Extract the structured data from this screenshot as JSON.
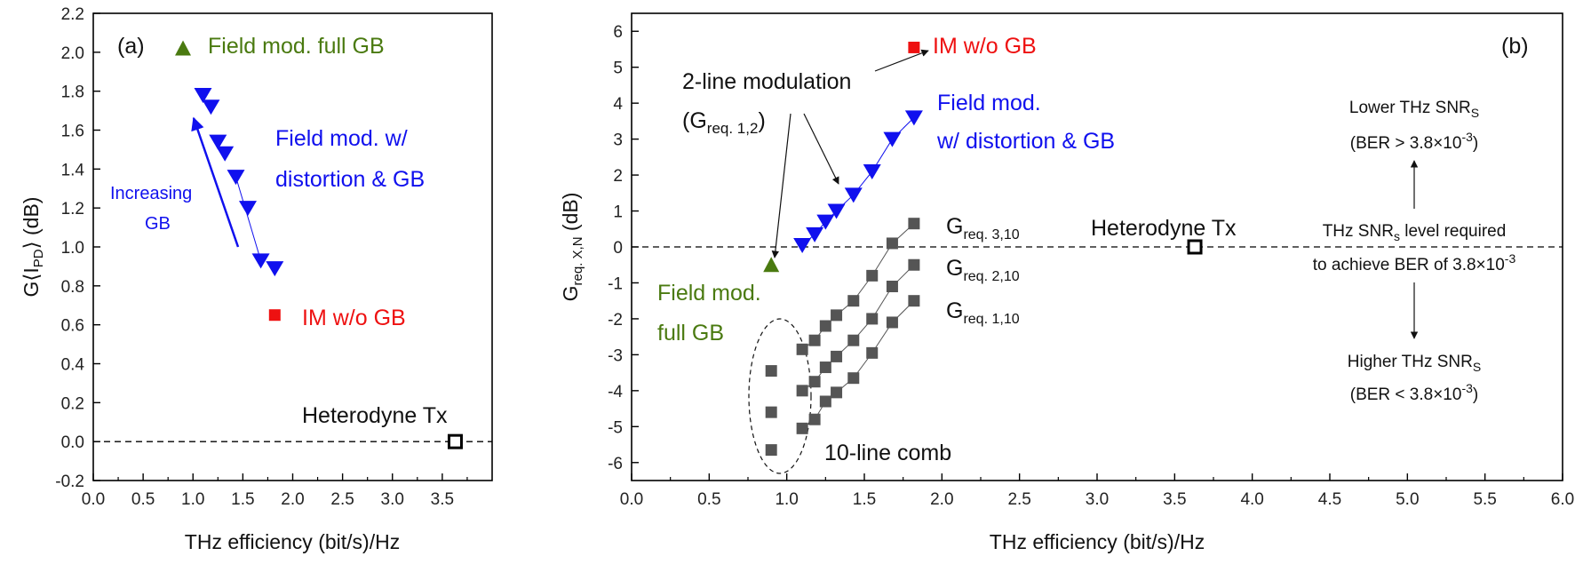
{
  "chart_data": [
    {
      "panel": "(a)",
      "type": "scatter",
      "xlabel": "THz efficiency (bit/s)/Hz",
      "ylabel_main": "G⟨I",
      "ylabel_sub": "PD",
      "ylabel_tail": "⟩ (dB)",
      "xlim": [
        0.0,
        4.0
      ],
      "ylim": [
        -0.2,
        2.2
      ],
      "xticks": [
        "0.0",
        "0.5",
        "1.0",
        "1.5",
        "2.0",
        "2.5",
        "3.0",
        "3.5"
      ],
      "yticks": [
        "-0.2",
        "0.0",
        "0.2",
        "0.4",
        "0.6",
        "0.8",
        "1.0",
        "1.2",
        "1.4",
        "1.6",
        "1.8",
        "2.0",
        "2.2"
      ],
      "reference_line_y": 0.0,
      "series": [
        {
          "name": "Field mod. full GB",
          "marker": "triangle-up",
          "color": "#4a7a10",
          "points": [
            [
              0.9,
              2.02
            ]
          ]
        },
        {
          "name": "Field mod. w/ distortion & GB",
          "marker": "triangle-down",
          "color": "#1010ee",
          "points": [
            [
              1.1,
              1.78
            ],
            [
              1.18,
              1.72
            ],
            [
              1.25,
              1.54
            ],
            [
              1.32,
              1.48
            ],
            [
              1.43,
              1.36
            ],
            [
              1.55,
              1.2
            ],
            [
              1.68,
              0.93
            ],
            [
              1.82,
              0.89
            ]
          ]
        },
        {
          "name": "IM w/o GB",
          "marker": "square",
          "color": "#ee1111",
          "points": [
            [
              1.82,
              0.65
            ]
          ]
        },
        {
          "name": "Heterodyne Tx",
          "marker": "open-square",
          "color": "#000000",
          "points": [
            [
              3.63,
              0.0
            ]
          ]
        }
      ],
      "annotations": {
        "panel_label": "(a)",
        "full_gb": "Field mod. full GB",
        "distortion_line1": "Field mod. w/",
        "distortion_line2": "distortion & GB",
        "increasing_line1": "Increasing",
        "increasing_line2": "GB",
        "im": "IM w/o GB",
        "heterodyne": "Heterodyne Tx"
      }
    },
    {
      "panel": "(b)",
      "type": "scatter",
      "xlabel": "THz efficiency (bit/s)/Hz",
      "ylabel_main": "G",
      "ylabel_sub": "req. X,N",
      "ylabel_tail": " (dB)",
      "xlim": [
        0.0,
        6.0
      ],
      "ylim": [
        -6.5,
        6.5
      ],
      "xticks": [
        "0.0",
        "0.5",
        "1.0",
        "1.5",
        "2.0",
        "2.5",
        "3.0",
        "3.5",
        "4.0",
        "4.5",
        "5.0",
        "5.5",
        "6.0"
      ],
      "yticks": [
        "-6",
        "-5",
        "-4",
        "-3",
        "-2",
        "-1",
        "0",
        "1",
        "2",
        "3",
        "4",
        "5",
        "6"
      ],
      "reference_line_y": 0.0,
      "series": [
        {
          "name": "IM w/o GB",
          "marker": "square",
          "color": "#ee1111",
          "points": [
            [
              1.82,
              5.55
            ]
          ]
        },
        {
          "name": "Field mod. w/ distortion & GB",
          "marker": "triangle-down",
          "color": "#1010ee",
          "points": [
            [
              1.1,
              0.05
            ],
            [
              1.18,
              0.35
            ],
            [
              1.25,
              0.7
            ],
            [
              1.32,
              1.0
            ],
            [
              1.43,
              1.45
            ],
            [
              1.55,
              2.1
            ],
            [
              1.68,
              3.0
            ],
            [
              1.82,
              3.6
            ]
          ]
        },
        {
          "name": "Field mod. full GB",
          "marker": "triangle-up",
          "color": "#4a7a10",
          "points": [
            [
              0.9,
              -0.5
            ]
          ]
        },
        {
          "name": "Heterodyne Tx",
          "marker": "open-square",
          "color": "#000000",
          "points": [
            [
              3.63,
              0.0
            ]
          ]
        },
        {
          "name": "G req. 3,10",
          "marker": "square",
          "color": "#555555",
          "points": [
            [
              1.1,
              -2.85
            ],
            [
              1.18,
              -2.6
            ],
            [
              1.25,
              -2.2
            ],
            [
              1.32,
              -1.9
            ],
            [
              1.43,
              -1.5
            ],
            [
              1.55,
              -0.8
            ],
            [
              1.68,
              0.1
            ],
            [
              1.82,
              0.65
            ]
          ]
        },
        {
          "name": "G req. 2,10",
          "marker": "square",
          "color": "#555555",
          "points": [
            [
              1.1,
              -4.0
            ],
            [
              1.18,
              -3.75
            ],
            [
              1.25,
              -3.35
            ],
            [
              1.32,
              -3.05
            ],
            [
              1.43,
              -2.6
            ],
            [
              1.55,
              -2.0
            ],
            [
              1.68,
              -1.1
            ],
            [
              1.82,
              -0.5
            ]
          ]
        },
        {
          "name": "G req. 1,10",
          "marker": "square",
          "color": "#555555",
          "points": [
            [
              1.1,
              -5.05
            ],
            [
              1.18,
              -4.8
            ],
            [
              1.25,
              -4.3
            ],
            [
              1.32,
              -4.05
            ],
            [
              1.43,
              -3.65
            ],
            [
              1.55,
              -2.95
            ],
            [
              1.68,
              -2.1
            ],
            [
              1.82,
              -1.5
            ]
          ]
        },
        {
          "name": "10-line comb (0.9)",
          "marker": "square",
          "color": "#555555",
          "points": [
            [
              0.9,
              -3.45
            ],
            [
              0.9,
              -4.6
            ],
            [
              0.9,
              -5.65
            ]
          ]
        }
      ],
      "annotations": {
        "panel_label": "(b)",
        "im": "IM w/o GB",
        "two_line": "2-line modulation",
        "two_line_g_main": "(G",
        "two_line_g_sub": "req. 1,2",
        "two_line_g_tail": ")",
        "field_dist_line1": "Field mod.",
        "field_dist_line2": "w/ distortion & GB",
        "field_full_line1": "Field mod.",
        "field_full_line2": "full GB",
        "heterodyne": "Heterodyne Tx",
        "g_main": "G",
        "g310_sub": "req. 3,10",
        "g210_sub": "req. 2,10",
        "g110_sub": "req. 1,10",
        "comb": "10-line comb",
        "lower_line1_main": "Lower THz SNR",
        "lower_line1_sub": "S",
        "lower_line2_main": "(BER > 3.8×10",
        "lower_line2_sup": "-3",
        "lower_line2_tail": ")",
        "required_line1_main": "THz SNR",
        "required_line1_sub": "s",
        "required_line1_tail": " level required",
        "required_line2_main": "to achieve BER of 3.8×10",
        "required_line2_sup": "-3",
        "higher_line1_main": "Higher THz SNR",
        "higher_line1_sub": "S",
        "higher_line2_main": "(BER < 3.8×10",
        "higher_line2_sup": "-3",
        "higher_line2_tail": ")"
      }
    }
  ]
}
